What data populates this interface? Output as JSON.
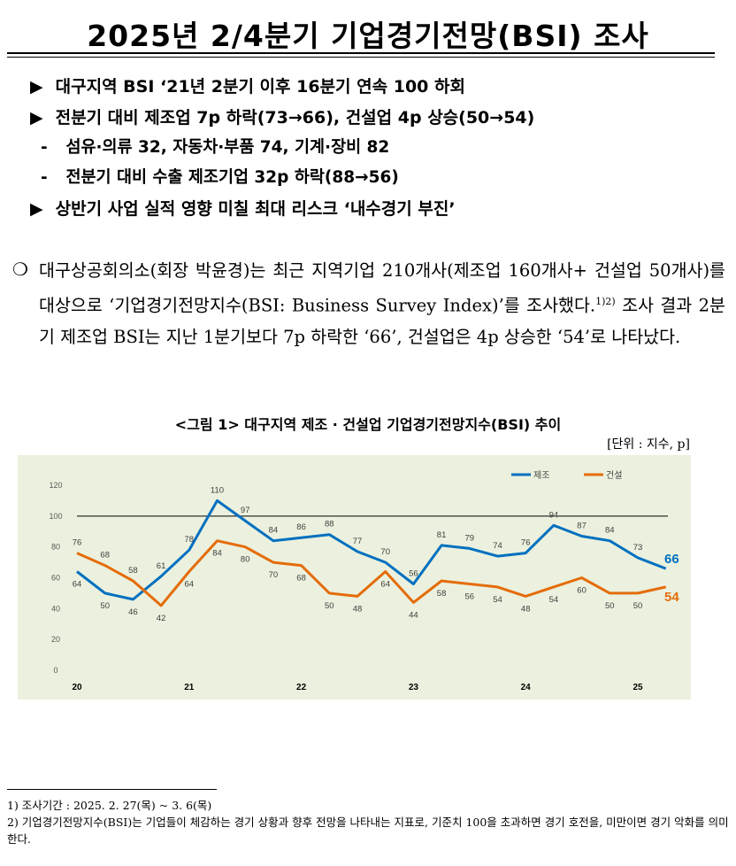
{
  "title": "2025년 2/4분기 기업경기전망(BSI) 조사",
  "highlights": [
    {
      "marker": "▶",
      "text": "대구지역 BSI ‘21년 2분기 이후 16분기 연속 100 하회"
    },
    {
      "marker": "▶",
      "text": "전분기 대비 제조업 7p 하락(73→66), 건설업 4p 상승(50→54)"
    },
    {
      "marker": "-",
      "text": "섬유·의류 32, 자동차·부품 74, 기계·장비 82"
    },
    {
      "marker": "-",
      "text": "전분기 대비 수출 제조기업 32p 하락(88→56)"
    },
    {
      "marker": "▶",
      "text": "상반기 사업 실적 영향 미칠 최대 리스크 ‘내수경기 부진’"
    }
  ],
  "paragraph": {
    "marker": "❍",
    "text_before": "대구상공회의소(회장 박윤경)는 최근 지역기업 210개사(제조업 160개사+ 건설업 50개사)를 대상으로 ‘기업경기전망지수(BSI: Business Survey Index)’를 조사했다.",
    "footnote_ref": "1)2)",
    "text_after": " 조사 결과 2분기 제조업 BSI는 지난 1분기보다 7p 하락한 ‘66’, 건설업은 4p 상승한 ‘54’로 나타났다."
  },
  "figure": {
    "title": "<그림 1> 대구지역 제조 · 건설업 기업경기전망지수(BSI) 추이",
    "unit": "[단위 : 지수, p]"
  },
  "chart_data": {
    "type": "line",
    "y_ticks": [
      "0",
      "20",
      "40",
      "60",
      "80",
      "100",
      "120"
    ],
    "ylim": [
      0,
      120
    ],
    "reference_line": 100,
    "x_year_labels": [
      {
        "label": "20",
        "index": 0
      },
      {
        "label": "21",
        "index": 4
      },
      {
        "label": "22",
        "index": 8
      },
      {
        "label": "23",
        "index": 12
      },
      {
        "label": "24",
        "index": 16
      },
      {
        "label": "25",
        "index": 20
      }
    ],
    "legend_position": "top-right",
    "grid": false,
    "series": [
      {
        "name": "제조",
        "color": "#0070c0",
        "values": [
          64,
          50,
          46,
          61,
          78,
          110,
          97,
          84,
          86,
          88,
          77,
          70,
          56,
          81,
          79,
          74,
          76,
          94,
          87,
          84,
          73,
          66
        ]
      },
      {
        "name": "건설",
        "color": "#e46c0a",
        "values": [
          76,
          68,
          58,
          42,
          64,
          84,
          80,
          70,
          68,
          50,
          48,
          64,
          44,
          58,
          56,
          54,
          48,
          54,
          60,
          50,
          50,
          54
        ]
      }
    ],
    "end_labels": [
      "66",
      "54"
    ]
  },
  "footnotes": [
    "1) 조사기간 : 2025. 2. 27(목) ~ 3. 6(목)",
    "2) 기업경기전망지수(BSI)는 기업들이 체감하는 경기 상황과 향후 전망을 나타내는 지표로, 기준치 100을 초과하면 경기 호전을, 미만이면 경기 악화를 의미한다."
  ]
}
